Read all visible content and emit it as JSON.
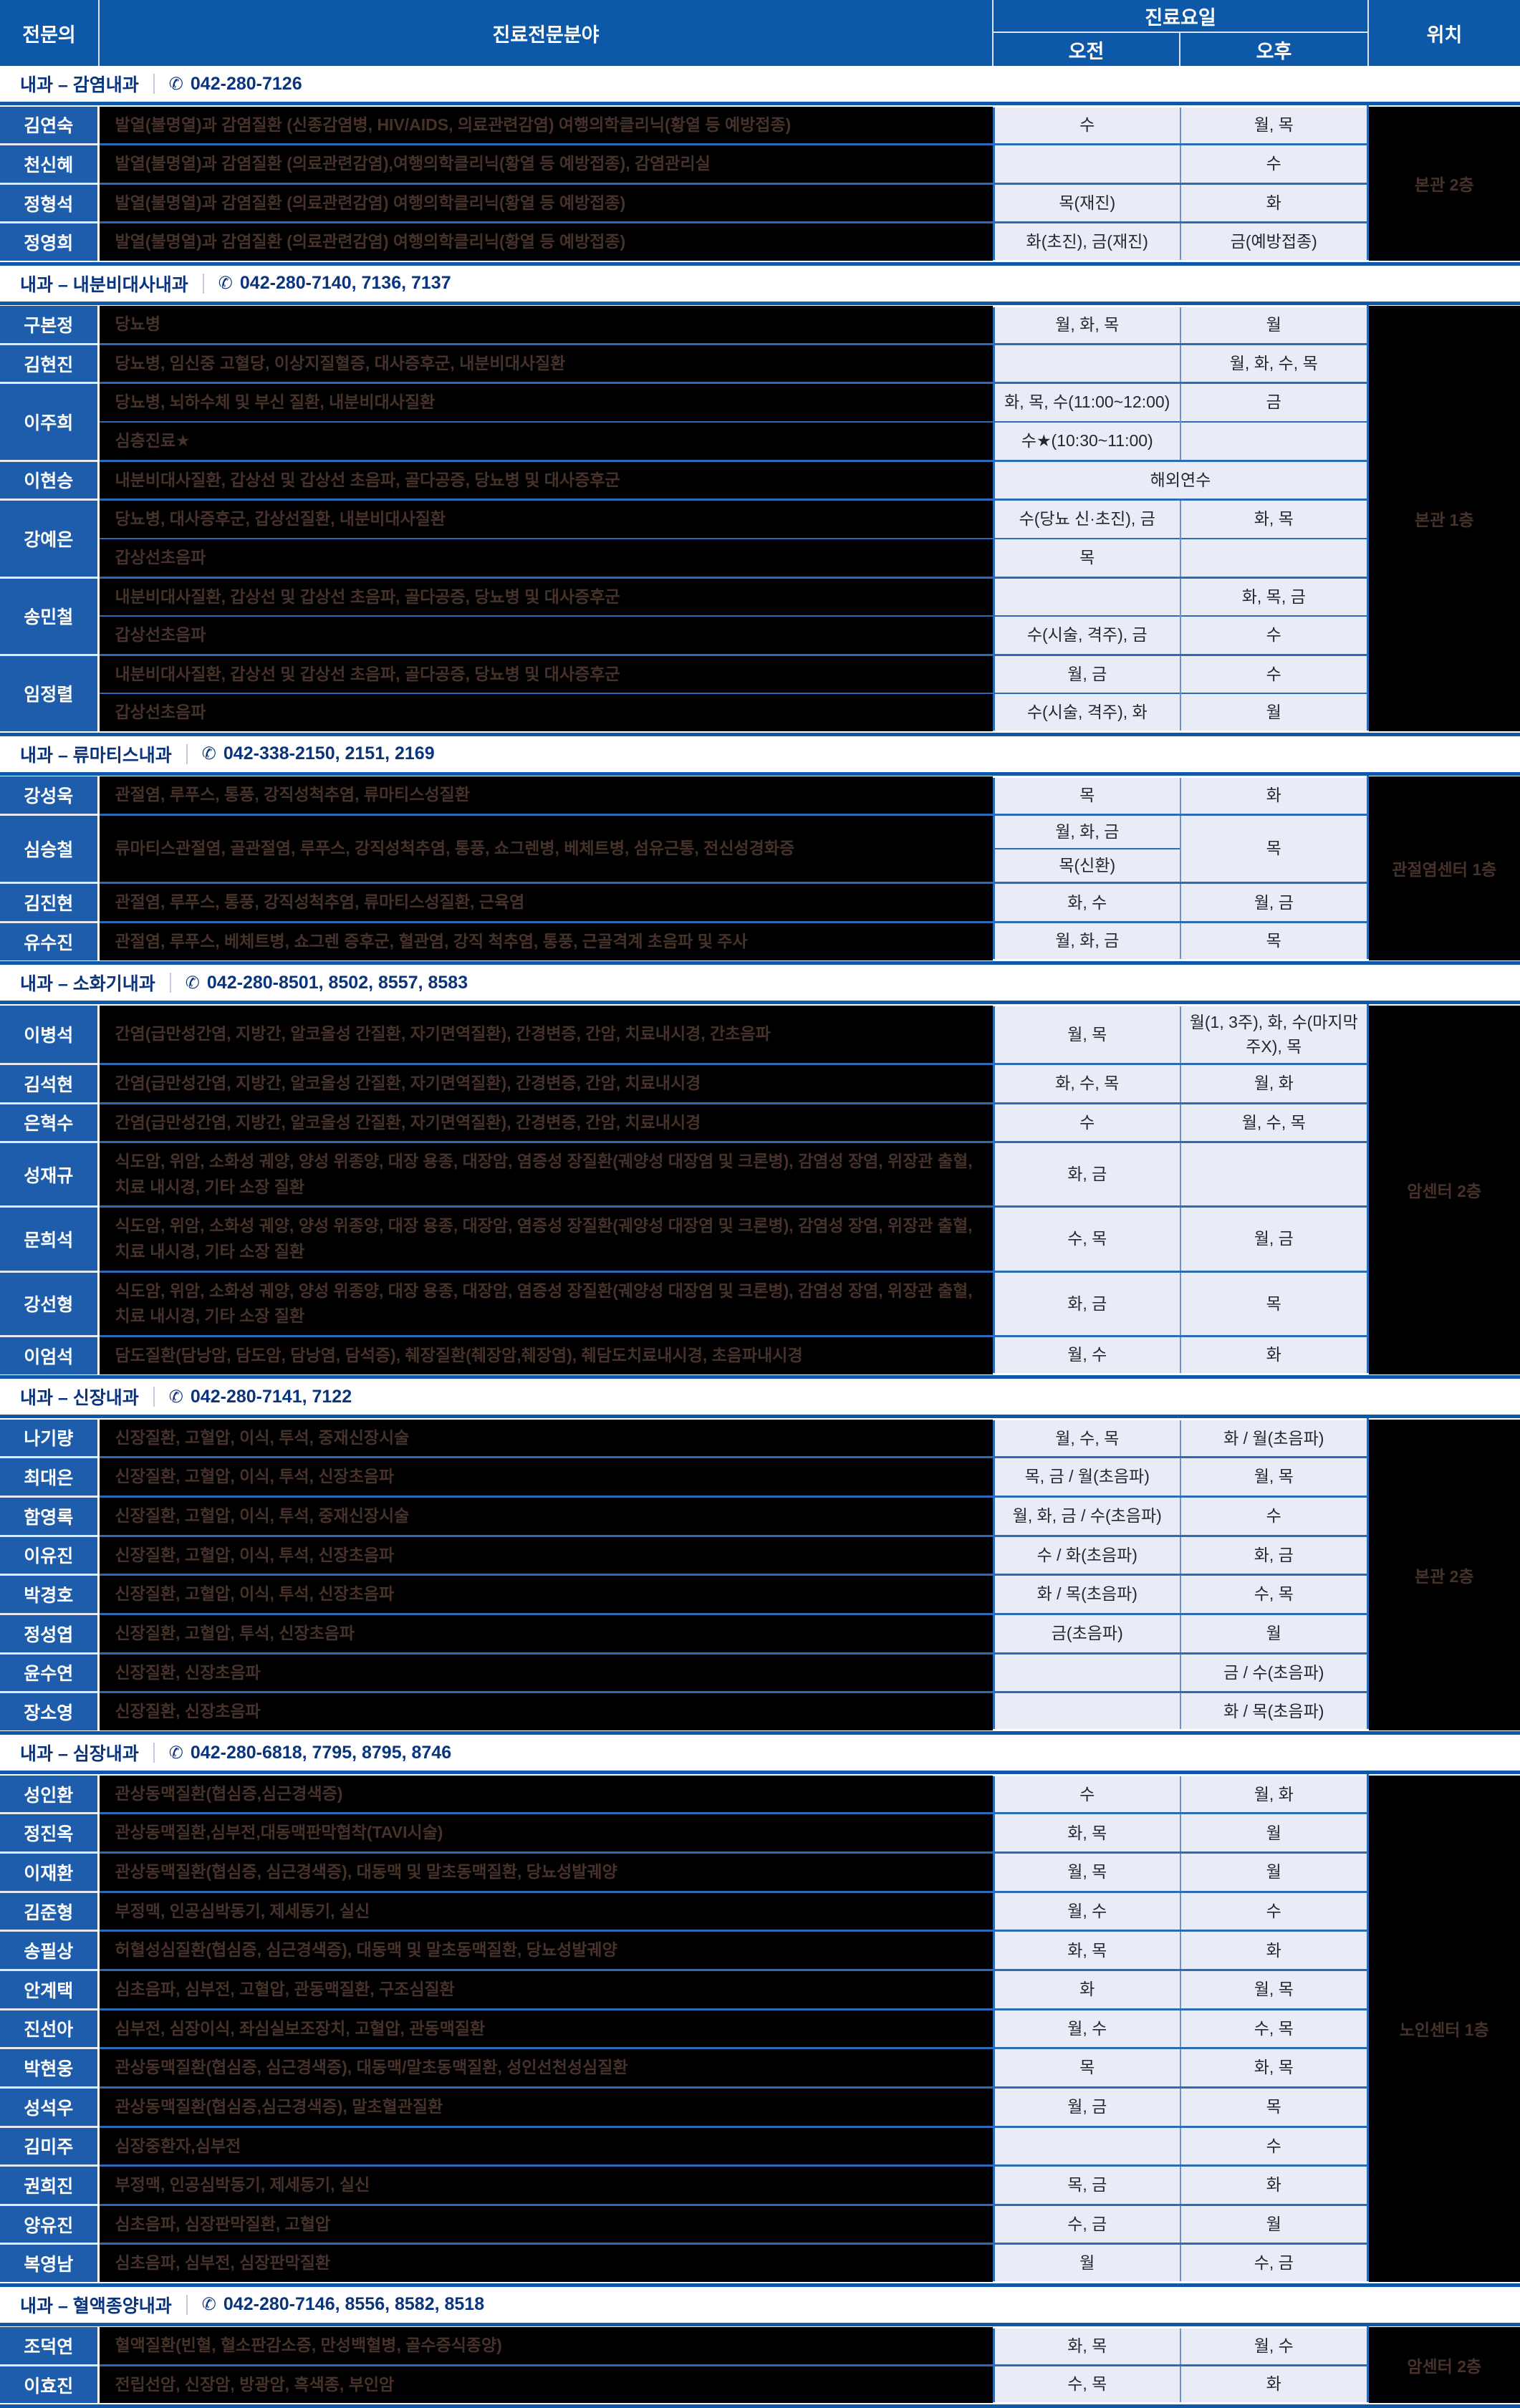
{
  "header": {
    "col_doctor": "전문의",
    "col_specialty": "진료전문분야",
    "col_days": "진료요일",
    "col_am": "오전",
    "col_pm": "오후",
    "col_location": "위치"
  },
  "colors": {
    "header_blue": "#0e58a8",
    "doctor_cell_blue": "#1d5dab",
    "row_line_blue": "#2d6bb7",
    "schedule_cell_bg": "#e9ecf6",
    "schedule_text": "#26262e",
    "specialty_text": "#46322a",
    "cell_black": "#000000",
    "title_navy": "#0a357e"
  },
  "phone_icon": "✆",
  "sections": [
    {
      "title": "내과 – 감염내과",
      "phone": "042-280-7126",
      "location": "본관 2층",
      "rows": [
        {
          "doctor": "김연숙",
          "subrows": [
            {
              "specialty": "발열(불명열)과 감염질환 (신종감염병, HIV/AIDS, 의료관련감염) 여행의학클리닉(황열 등 예방접종)",
              "am": "수",
              "pm": "월, 목"
            }
          ]
        },
        {
          "doctor": "천신혜",
          "subrows": [
            {
              "specialty": "발열(불명열)과 감염질환 (의료관련감염),여행의학클리닉(황열 등 예방접종), 감염관리실",
              "am": "",
              "pm": "수"
            }
          ]
        },
        {
          "doctor": "정형석",
          "subrows": [
            {
              "specialty": "발열(불명열)과 감염질환 (의료관련감염) 여행의학클리닉(황열 등 예방접종)",
              "am": "목(재진)",
              "pm": "화"
            }
          ]
        },
        {
          "doctor": "정영희",
          "subrows": [
            {
              "specialty": "발열(불명열)과 감염질환 (의료관련감염) 여행의학클리닉(황열 등 예방접종)",
              "am": "화(초진), 금(재진)",
              "pm": "금(예방접종)"
            }
          ]
        }
      ]
    },
    {
      "title": "내과 – 내분비대사내과",
      "phone": "042-280-7140, 7136, 7137",
      "location": "본관 1층",
      "rows": [
        {
          "doctor": "구본정",
          "subrows": [
            {
              "specialty": "당뇨병",
              "am": "월, 화, 목",
              "pm": "월"
            }
          ]
        },
        {
          "doctor": "김현진",
          "subrows": [
            {
              "specialty": "당뇨병, 임신중 고혈당, 이상지질혈증, 대사증후군, 내분비대사질환",
              "am": "",
              "pm": "월, 화, 수, 목"
            }
          ]
        },
        {
          "doctor": "이주희",
          "subrows": [
            {
              "specialty": "당뇨병, 뇌하수체 및 부신 질환, 내분비대사질환",
              "am": "화, 목, 수(11:00~12:00)",
              "pm": "금"
            },
            {
              "specialty": "심층진료★",
              "am": "수★(10:30~11:00)",
              "pm": ""
            }
          ]
        },
        {
          "doctor": "이현승",
          "subrows": [
            {
              "specialty": "내분비대사질환, 갑상선 및 갑상선 초음파, 골다공증, 당뇨병 및 대사증후군",
              "merged": "해외연수"
            }
          ]
        },
        {
          "doctor": "강예은",
          "subrows": [
            {
              "specialty": "당뇨병, 대사증후군, 갑상선질환, 내분비대사질환",
              "am": "수(당뇨 신·초진), 금",
              "pm": "화, 목"
            },
            {
              "specialty": "갑상선초음파",
              "am": "목",
              "pm": ""
            }
          ]
        },
        {
          "doctor": "송민철",
          "subrows": [
            {
              "specialty": "내분비대사질환, 갑상선 및 갑상선 초음파, 골다공증, 당뇨병 및 대사증후군",
              "am": "",
              "pm": "화, 목, 금"
            },
            {
              "specialty": "갑상선초음파",
              "am": "수(시술, 격주), 금",
              "pm": "수"
            }
          ]
        },
        {
          "doctor": "임정렬",
          "subrows": [
            {
              "specialty": "내분비대사질환, 갑상선 및 갑상선 초음파, 골다공증, 당뇨병 및 대사증후군",
              "am": "월, 금",
              "pm": "수"
            },
            {
              "specialty": "갑상선초음파",
              "am": "수(시술, 격주), 화",
              "pm": "월"
            }
          ]
        }
      ]
    },
    {
      "title": "내과 – 류마티스내과",
      "phone": "042-338-2150, 2151, 2169",
      "location": "관절염센터 1층",
      "rows": [
        {
          "doctor": "강성욱",
          "subrows": [
            {
              "specialty": "관절염, 루푸스, 통풍, 강직성척추염, 류마티스성질환",
              "am": "목",
              "pm": "화"
            }
          ]
        },
        {
          "doctor": "심승철",
          "subrows": [
            {
              "specialty": "류마티스관절염, 골관절염, 루푸스, 강직성척추염, 통풍, 쇼그렌병, 베체트병, 섬유근통, 전신성경화증",
              "am_split": [
                "월, 화, 금",
                "목(신환)"
              ],
              "pm": "목"
            }
          ]
        },
        {
          "doctor": "김진현",
          "subrows": [
            {
              "specialty": "관절염, 루푸스, 통풍, 강직성척추염, 류마티스성질환, 근육염",
              "am": "화, 수",
              "pm": "월, 금"
            }
          ]
        },
        {
          "doctor": "유수진",
          "subrows": [
            {
              "specialty": "관절염, 루푸스, 베체트병, 쇼그렌 증후군, 혈관염, 강직 척추염, 통풍, 근골격계 초음파 및 주사",
              "am": "월, 화, 금",
              "pm": "목"
            }
          ]
        }
      ]
    },
    {
      "title": "내과 – 소화기내과",
      "phone": "042-280-8501, 8502, 8557, 8583",
      "location": "암센터 2층",
      "rows": [
        {
          "doctor": "이병석",
          "subrows": [
            {
              "specialty": "간염(급만성간염, 지방간, 알코올성 간질환, 자기면역질환), 간경변증, 간암, 치료내시경, 간초음파",
              "am": "월, 목",
              "pm": "월(1, 3주), 화, 수(마지막주X), 목"
            }
          ]
        },
        {
          "doctor": "김석현",
          "subrows": [
            {
              "specialty": "간염(급만성간염, 지방간, 알코올성 간질환, 자기면역질환), 간경변증, 간암, 치료내시경",
              "am": "화, 수, 목",
              "pm": "월, 화"
            }
          ]
        },
        {
          "doctor": "은혁수",
          "subrows": [
            {
              "specialty": "간염(급만성간염, 지방간, 알코올성 간질환, 자기면역질환), 간경변증, 간암, 치료내시경",
              "am": "수",
              "pm": "월, 수, 목"
            }
          ]
        },
        {
          "doctor": "성재규",
          "subrows": [
            {
              "specialty": "식도암, 위암, 소화성 궤양, 양성 위종양, 대장 용종, 대장암, 염증성 장질환(궤양성 대장염 및 크론병), 감염성 장염, 위장관 출혈, 치료 내시경, 기타 소장 질환",
              "am": "화, 금",
              "pm": ""
            }
          ]
        },
        {
          "doctor": "문희석",
          "subrows": [
            {
              "specialty": "식도암, 위암, 소화성 궤양, 양성 위종양, 대장 용종, 대장암, 염증성 장질환(궤양성 대장염 및 크론병), 감염성 장염, 위장관 출혈, 치료 내시경, 기타 소장 질환",
              "am": "수, 목",
              "pm": "월, 금"
            }
          ]
        },
        {
          "doctor": "강선형",
          "subrows": [
            {
              "specialty": "식도암, 위암, 소화성 궤양, 양성 위종양, 대장 용종, 대장암, 염증성 장질환(궤양성 대장염 및 크론병), 감염성 장염, 위장관 출혈, 치료 내시경, 기타 소장 질환",
              "am": "화, 금",
              "pm": "목"
            }
          ]
        },
        {
          "doctor": "이엄석",
          "subrows": [
            {
              "specialty": "담도질환(담낭암, 담도암, 담낭염, 담석증), 췌장질환(췌장암,췌장염), 췌담도치료내시경, 초음파내시경",
              "am": "월, 수",
              "pm": "화"
            }
          ]
        }
      ]
    },
    {
      "title": "내과 – 신장내과",
      "phone": "042-280-7141, 7122",
      "location": "본관 2층",
      "rows": [
        {
          "doctor": "나기량",
          "subrows": [
            {
              "specialty": "신장질환, 고혈압, 이식, 투석, 중재신장시술",
              "am": "월, 수, 목",
              "pm": "화 / 월(초음파)"
            }
          ]
        },
        {
          "doctor": "최대은",
          "subrows": [
            {
              "specialty": "신장질환, 고혈압, 이식, 투석, 신장초음파",
              "am": "목, 금 / 월(초음파)",
              "pm": "월, 목"
            }
          ]
        },
        {
          "doctor": "함영록",
          "subrows": [
            {
              "specialty": "신장질환, 고혈압, 이식, 투석, 중재신장시술",
              "am": "월, 화, 금 / 수(초음파)",
              "pm": "수"
            }
          ]
        },
        {
          "doctor": "이유진",
          "subrows": [
            {
              "specialty": "신장질환, 고혈압, 이식, 투석, 신장초음파",
              "am": "수 / 화(초음파)",
              "pm": "화, 금"
            }
          ]
        },
        {
          "doctor": "박경호",
          "subrows": [
            {
              "specialty": "신장질환, 고혈압, 이식, 투석, 신장초음파",
              "am": "화 / 목(초음파)",
              "pm": "수, 목"
            }
          ]
        },
        {
          "doctor": "정성엽",
          "subrows": [
            {
              "specialty": "신장질환, 고혈압, 투석, 신장초음파",
              "am": "금(초음파)",
              "pm": "월"
            }
          ]
        },
        {
          "doctor": "윤수연",
          "subrows": [
            {
              "specialty": "신장질환, 신장초음파",
              "am": "",
              "pm": "금 / 수(초음파)"
            }
          ]
        },
        {
          "doctor": "장소영",
          "subrows": [
            {
              "specialty": "신장질환, 신장초음파",
              "am": "",
              "pm": "화 / 목(초음파)"
            }
          ]
        }
      ]
    },
    {
      "title": "내과 – 심장내과",
      "phone": "042-280-6818, 7795, 8795, 8746",
      "location": "노인센터 1층",
      "rows": [
        {
          "doctor": "성인환",
          "subrows": [
            {
              "specialty": "관상동맥질환(협심증,심근경색증)",
              "am": "수",
              "pm": "월, 화"
            }
          ]
        },
        {
          "doctor": "정진옥",
          "subrows": [
            {
              "specialty": "관상동맥질환,심부전,대동맥판막협착(TAVI시술)",
              "am": "화, 목",
              "pm": "월"
            }
          ]
        },
        {
          "doctor": "이재환",
          "subrows": [
            {
              "specialty": "관상동맥질환(협심증, 심근경색증), 대동맥 및 말초동맥질환, 당뇨성발궤양",
              "am": "월, 목",
              "pm": "월"
            }
          ]
        },
        {
          "doctor": "김준형",
          "subrows": [
            {
              "specialty": "부정맥, 인공심박동기, 제세동기, 실신",
              "am": "월, 수",
              "pm": "수"
            }
          ]
        },
        {
          "doctor": "송필상",
          "subrows": [
            {
              "specialty": "허혈성심질환(협심증, 심근경색증), 대동맥 및 말초동맥질환, 당뇨성발궤양",
              "am": "화, 목",
              "pm": "화"
            }
          ]
        },
        {
          "doctor": "안계택",
          "subrows": [
            {
              "specialty": "심초음파, 심부전, 고혈압, 관동맥질환, 구조심질환",
              "am": "화",
              "pm": "월, 목"
            }
          ]
        },
        {
          "doctor": "진선아",
          "subrows": [
            {
              "specialty": "심부전, 심장이식, 좌심실보조장치, 고혈압, 관동맥질환",
              "am": "월, 수",
              "pm": "수, 목"
            }
          ]
        },
        {
          "doctor": "박현웅",
          "subrows": [
            {
              "specialty": "관상동맥질환(협심증, 심근경색증), 대동맥/말초동맥질환, 성인선천성심질환",
              "am": "목",
              "pm": "화, 목"
            }
          ]
        },
        {
          "doctor": "성석우",
          "subrows": [
            {
              "specialty": "관상동맥질환(협심증,심근경색증), 말초혈관질환",
              "am": "월, 금",
              "pm": "목"
            }
          ]
        },
        {
          "doctor": "김미주",
          "subrows": [
            {
              "specialty": "심장중환자,심부전",
              "am": "",
              "pm": "수"
            }
          ]
        },
        {
          "doctor": "권희진",
          "subrows": [
            {
              "specialty": "부정맥, 인공심박동기, 제세동기, 실신",
              "am": "목, 금",
              "pm": "화"
            }
          ]
        },
        {
          "doctor": "양유진",
          "subrows": [
            {
              "specialty": "심초음파, 심장판막질환, 고혈압",
              "am": "수, 금",
              "pm": "월"
            }
          ]
        },
        {
          "doctor": "복영남",
          "subrows": [
            {
              "specialty": "심초음파, 심부전, 심장판막질환",
              "am": "월",
              "pm": "수, 금"
            }
          ]
        }
      ]
    },
    {
      "title": "내과 – 혈액종양내과",
      "phone": "042-280-7146, 8556, 8582, 8518",
      "location": "암센터 2층",
      "rows": [
        {
          "doctor": "조덕연",
          "subrows": [
            {
              "specialty": "혈액질환(빈혈, 혈소판감소증, 만성백혈병, 골수증식종양)",
              "am": "화, 목",
              "pm": "월, 수"
            }
          ]
        },
        {
          "doctor": "이효진",
          "subrows": [
            {
              "specialty": "전립선암, 신장암, 방광암, 흑색종, 부인암",
              "am": "수, 목",
              "pm": "화"
            }
          ]
        }
      ]
    }
  ]
}
